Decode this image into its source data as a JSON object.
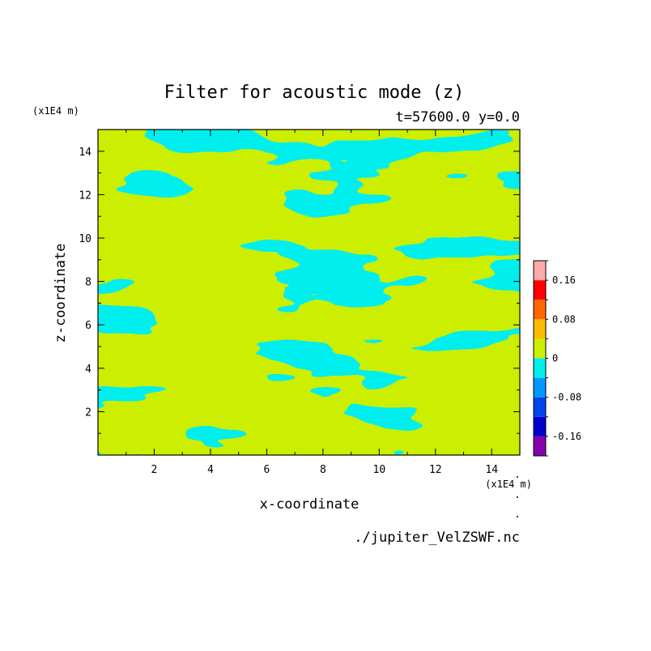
{
  "chart_data": {
    "type": "heatmap",
    "title": "Filter for acoustic mode (z)",
    "subtitle": "t=57600.0 y=0.0",
    "xlabel": "x-coordinate",
    "ylabel": "z-coordinate",
    "x_unit": "(x1E4 m)",
    "y_unit": "(x1E4 m)",
    "source_file": "./jupiter_VelZSWF.nc",
    "xlim": [
      0,
      15
    ],
    "ylim": [
      0,
      15
    ],
    "x_ticks": [
      2,
      4,
      6,
      8,
      10,
      12,
      14
    ],
    "y_ticks": [
      2,
      4,
      6,
      8,
      10,
      12,
      14
    ],
    "x_tick_labels": [
      "2",
      "4",
      "6",
      "8",
      "10",
      "12",
      "14"
    ],
    "y_tick_labels": [
      "2",
      "4",
      "6",
      "8",
      "10",
      "12",
      "14"
    ],
    "colorbar": {
      "levels": [
        -0.2,
        -0.16,
        -0.12,
        -0.08,
        -0.04,
        0,
        0.04,
        0.08,
        0.12,
        0.16,
        0.2
      ],
      "colors": [
        "#8800aa",
        "#0000cc",
        "#0044ee",
        "#0099ff",
        "#00eeee",
        "#ccee00",
        "#ffbb00",
        "#ff6600",
        "#ff0000",
        "#ffaaaa"
      ],
      "tick_values": [
        -0.16,
        -0.08,
        0,
        0.08,
        0.16
      ],
      "tick_labels": [
        "-0.16",
        "-0.08",
        "0",
        "0.08",
        "0.16"
      ]
    },
    "field_colors": {
      "negative": "#00eeee",
      "positive": "#ccee00"
    }
  }
}
